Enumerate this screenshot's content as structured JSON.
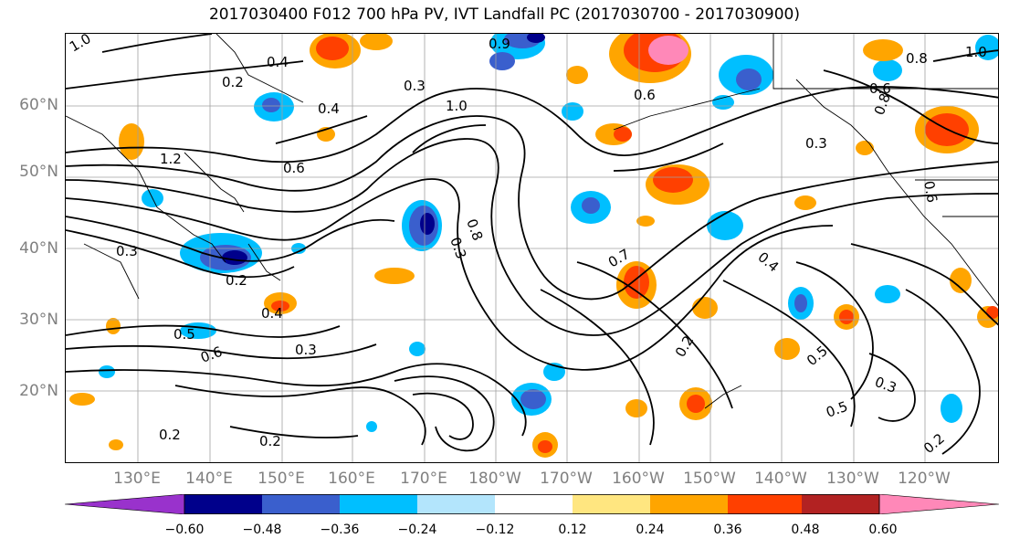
{
  "title": "2017030400 F012 700 hPa PV, IVT Landfall PC (2017030700 - 2017030900)",
  "lat_labels": [
    "60°N",
    "50°N",
    "40°N",
    "30°N",
    "20°N"
  ],
  "lon_labels": [
    "130°E",
    "140°E",
    "150°E",
    "160°E",
    "170°E",
    "180°W",
    "170°W",
    "160°W",
    "150°W",
    "140°W",
    "130°W",
    "120°W"
  ],
  "colorbar": {
    "ticks": [
      "−0.60",
      "−0.48",
      "−0.36",
      "−0.24",
      "−0.12",
      "0.12",
      "0.24",
      "0.36",
      "0.48",
      "0.60"
    ],
    "colors": [
      "#9932cc",
      "#00008b",
      "#3a5fcd",
      "#00bfff",
      "#b3e5fc",
      "#ffffff",
      "#ffe680",
      "#ffa500",
      "#ff4000",
      "#b22222",
      "#ff88b8"
    ]
  },
  "contour_labels": [
    "1.0",
    "0.4",
    "0.9",
    "0.6",
    "0.3",
    "1.0",
    "1.2",
    "0.6",
    "0.4",
    "0.2",
    "0.3",
    "0.2",
    "0.4",
    "0.5",
    "0.6",
    "0.3",
    "0.2",
    "0.2",
    "0.8",
    "0.3",
    "0.7",
    "0.4",
    "0.5",
    "0.3",
    "0.5",
    "0.2",
    "0.2",
    "0.6",
    "0.8",
    "0.3",
    "0.6",
    "1.0",
    "0.8"
  ]
}
